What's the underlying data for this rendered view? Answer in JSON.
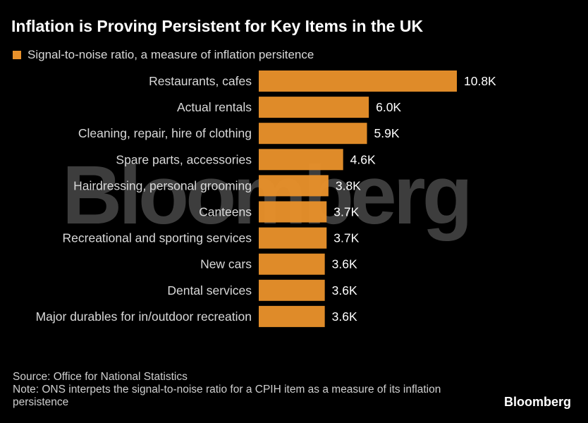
{
  "title": "Inflation is Proving Persistent for Key Items in the UK",
  "legend_label": "Signal-to-noise ratio, a measure of inflation persitence",
  "watermark": "Bloomberg",
  "footer": {
    "source": "Source: Office for National Statistics",
    "note": "Note: ONS interpets the signal-to-noise ratio for a CPIH item as a measure of its inflation persistence"
  },
  "logo": "Bloomberg",
  "colors": {
    "bar": "#e8912b",
    "background": "#000000"
  },
  "chart_data": {
    "type": "bar",
    "orientation": "horizontal",
    "title": "Inflation is Proving Persistent for Key Items in the UK",
    "legend": "top-left",
    "grid": false,
    "xlim": [
      0,
      10.8
    ],
    "series": [
      {
        "name": "Signal-to-noise ratio, a measure of inflation persitence",
        "values": [
          10.8,
          6.0,
          5.9,
          4.6,
          3.8,
          3.7,
          3.7,
          3.6,
          3.6,
          3.6
        ]
      }
    ],
    "categories": [
      "Restaurants, cafes",
      "Actual rentals",
      "Cleaning, repair, hire of clothing",
      "Spare parts, accessories",
      "Hairdressing, personal grooming",
      "Canteens",
      "Recreational and sporting services",
      "New cars",
      "Dental services",
      "Major durables for in/outdoor recreation"
    ],
    "data_labels": [
      "10.8K",
      "6.0K",
      "5.9K",
      "4.6K",
      "3.8K",
      "3.7K",
      "3.7K",
      "3.6K",
      "3.6K",
      "3.6K"
    ]
  }
}
